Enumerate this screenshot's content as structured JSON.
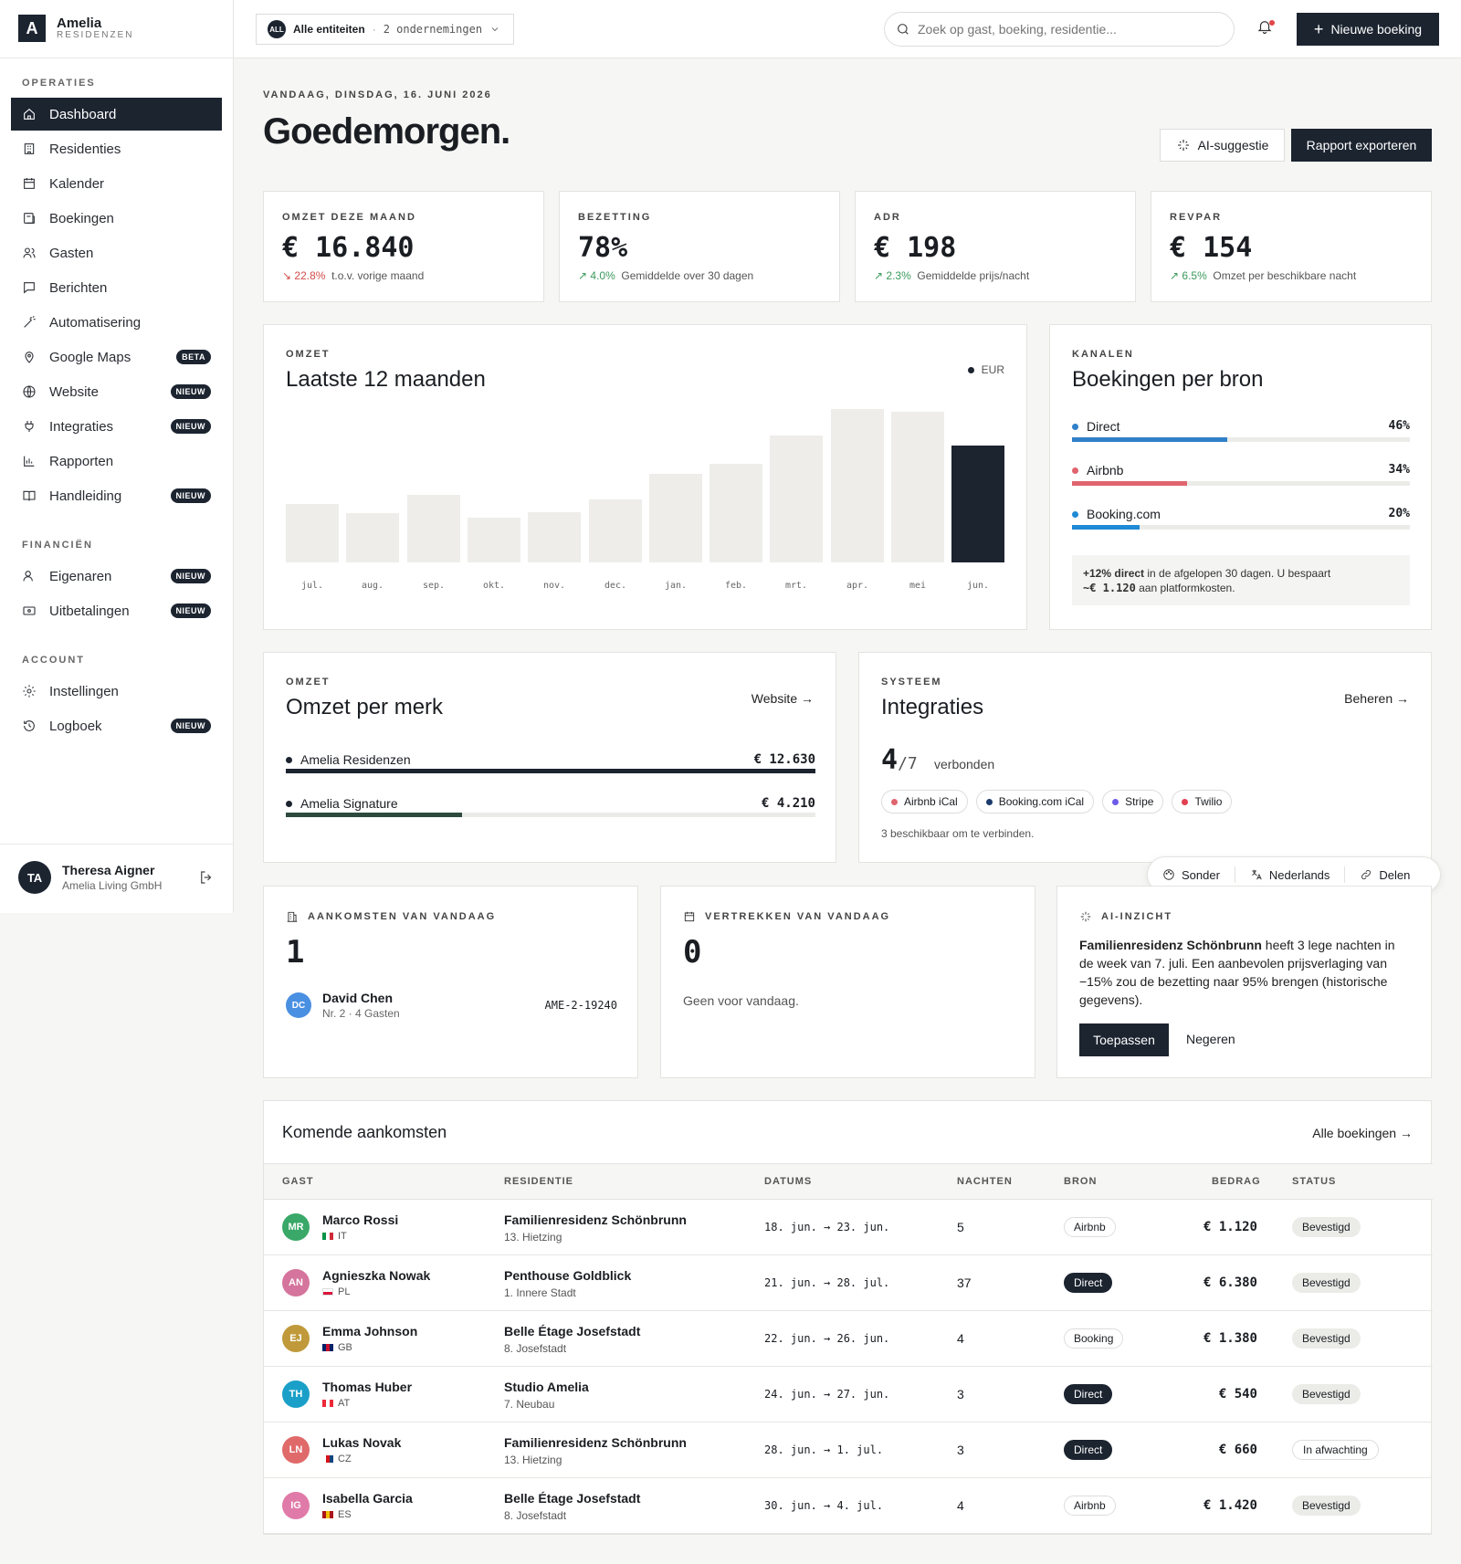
{
  "app": {
    "logo_letter": "A",
    "name": "Amelia",
    "subtitle": "RESIDENZEN"
  },
  "sidebar": {
    "sections": [
      {
        "title": "OPERATIES",
        "items": [
          {
            "label": "Dashboard",
            "icon": "home-icon",
            "active": true
          },
          {
            "label": "Residenties",
            "icon": "building-icon"
          },
          {
            "label": "Kalender",
            "icon": "calendar-icon"
          },
          {
            "label": "Boekingen",
            "icon": "booking-icon"
          },
          {
            "label": "Gasten",
            "icon": "users-icon"
          },
          {
            "label": "Berichten",
            "icon": "message-icon"
          },
          {
            "label": "Automatisering",
            "icon": "wand-icon"
          },
          {
            "label": "Google Maps",
            "icon": "map-pin-icon",
            "badge": "BETA"
          },
          {
            "label": "Website",
            "icon": "globe-icon",
            "badge": "NIEUW"
          },
          {
            "label": "Integraties",
            "icon": "plug-icon",
            "badge": "NIEUW"
          },
          {
            "label": "Rapporten",
            "icon": "bar-chart-icon"
          },
          {
            "label": "Handleiding",
            "icon": "book-icon",
            "badge": "NIEUW"
          }
        ]
      },
      {
        "title": "FINANCIËN",
        "items": [
          {
            "label": "Eigenaren",
            "icon": "owner-icon",
            "badge": "NIEUW"
          },
          {
            "label": "Uitbetalingen",
            "icon": "wallet-icon",
            "badge": "NIEUW"
          }
        ]
      },
      {
        "title": "ACCOUNT",
        "items": [
          {
            "label": "Instellingen",
            "icon": "gear-icon"
          },
          {
            "label": "Logboek",
            "icon": "history-icon",
            "badge": "NIEUW"
          }
        ]
      }
    ],
    "user": {
      "initials": "TA",
      "name": "Theresa Aigner",
      "org": "Amelia Living GmbH"
    }
  },
  "topbar": {
    "entity_badge": "ALL",
    "entity_label": "Alle entiteiten",
    "entity_count": "2 ondernemingen",
    "search_placeholder": "Zoek op gast, boeking, residentie...",
    "new_booking": "Nieuwe boeking"
  },
  "header": {
    "date": "VANDAAG, DINSDAG, 16. JUNI 2026",
    "greeting": "Goedemorgen.",
    "ai_button": "AI-suggestie",
    "export_button": "Rapport exporteren"
  },
  "kpis": [
    {
      "label": "OMZET DEZE MAAND",
      "value": "€ 16.840",
      "delta": "↘ 22.8%",
      "delta_dir": "down",
      "note": "t.o.v. vorige maand"
    },
    {
      "label": "BEZETTING",
      "value": "78%",
      "delta": "↗ 4.0%",
      "delta_dir": "up",
      "note": "Gemiddelde over 30 dagen"
    },
    {
      "label": "ADR",
      "value": "€ 198",
      "delta": "↗ 2.3%",
      "delta_dir": "up",
      "note": "Gemiddelde prijs/nacht"
    },
    {
      "label": "REVPAR",
      "value": "€ 154",
      "delta": "↗ 6.5%",
      "delta_dir": "up",
      "note": "Omzet per beschikbare nacht"
    }
  ],
  "chart_data": {
    "type": "bar",
    "label": "OMZET",
    "title": "Laatste 12 maanden",
    "legend": "EUR",
    "categories": [
      "jul.",
      "aug.",
      "sep.",
      "okt.",
      "nov.",
      "dec.",
      "jan.",
      "feb.",
      "mrt.",
      "apr.",
      "mei",
      "jun."
    ],
    "values": [
      38,
      32,
      44,
      29,
      33,
      41,
      58,
      64,
      83,
      100,
      98,
      76
    ],
    "highlight_index": 11,
    "ylim": [
      0,
      100
    ]
  },
  "channels": {
    "label": "KANALEN",
    "title": "Boekingen per bron",
    "items": [
      {
        "name": "Direct",
        "pct": "46%",
        "value": 46,
        "color": "#2f80c9"
      },
      {
        "name": "Airbnb",
        "pct": "34%",
        "value": 34,
        "color": "#e0646e"
      },
      {
        "name": "Booking.com",
        "pct": "20%",
        "value": 20,
        "color": "#1f8ad6"
      }
    ],
    "note_strong": "+12% direct",
    "note_rest": " in de afgelopen 30 dagen. U bespaart",
    "note_line2_code": "~€ 1.120",
    "note_line2_rest": " aan platformkosten."
  },
  "brands": {
    "label": "OMZET",
    "title": "Omzet per merk",
    "link": "Website →",
    "items": [
      {
        "name": "Amelia Residenzen",
        "value": "€ 12.630",
        "fraction": 1.0,
        "color": "#1c2430"
      },
      {
        "name": "Amelia Signature",
        "value": "€ 4.210",
        "fraction": 0.333,
        "color": "#2d4a3e"
      }
    ]
  },
  "integrations": {
    "label": "SYSTEEM",
    "title": "Integraties",
    "link": "Beheren →",
    "connected": "4",
    "total": "/7",
    "word": "verbonden",
    "chips": [
      {
        "name": "Airbnb iCal",
        "color": "#e0646e"
      },
      {
        "name": "Booking.com iCal",
        "color": "#1c3a6b"
      },
      {
        "name": "Stripe",
        "color": "#6c5ce7"
      },
      {
        "name": "Twilio",
        "color": "#e04050"
      }
    ],
    "sub": "3 beschikbaar om te verbinden."
  },
  "floatbar": {
    "items": [
      {
        "label": "Sonder",
        "icon": "palette-icon"
      },
      {
        "label": "Nederlands",
        "icon": "translate-icon"
      },
      {
        "label": "Delen",
        "icon": "link-icon"
      }
    ]
  },
  "arrivals_today": {
    "label": "AANKOMSTEN VAN VANDAAG",
    "count": "1",
    "guest": {
      "initials": "DC",
      "name": "David Chen",
      "sub": "Nr. 2 · 4 Gasten",
      "code": "AME-2-19240",
      "color": "#4a90e2"
    }
  },
  "departures_today": {
    "label": "VERTREKKEN VAN VANDAAG",
    "count": "0",
    "empty": "Geen voor vandaag."
  },
  "ai_insight": {
    "label": "AI-INZICHT",
    "strong": "Familienresidenz Schönbrunn",
    "text": " heeft 3 lege nachten in de week van 7. juli. Een aanbevolen prijsverlaging van −15% zou de bezetting naar 95% brengen (historische gegevens).",
    "apply": "Toepassen",
    "ignore": "Negeren"
  },
  "upcoming": {
    "title": "Komende aankomsten",
    "link": "Alle boekingen →",
    "columns": [
      "GAST",
      "RESIDENTIE",
      "DATUMS",
      "NACHTEN",
      "BRON",
      "BEDRAG",
      "STATUS"
    ],
    "rows": [
      {
        "initials": "MR",
        "color": "#3aa868",
        "name": "Marco Rossi",
        "country": "IT",
        "flag": [
          "#009246",
          "#ffffff",
          "#ce2b37"
        ],
        "residence": "Familienresidenz Schönbrunn",
        "district": "13. Hietzing",
        "dates": "18. jun. → 23. jun.",
        "nights": "5",
        "source": "Airbnb",
        "source_dark": false,
        "amount": "€ 1.120",
        "status": "Bevestigd",
        "pending": false
      },
      {
        "initials": "AN",
        "color": "#d5749c",
        "name": "Agnieszka Nowak",
        "country": "PL",
        "flag": [
          "#ffffff",
          "#dc143c"
        ],
        "residence": "Penthouse Goldblick",
        "district": "1. Innere Stadt",
        "dates": "21. jun. → 28. jul.",
        "nights": "37",
        "source": "Direct",
        "source_dark": true,
        "amount": "€ 6.380",
        "status": "Bevestigd",
        "pending": false
      },
      {
        "initials": "EJ",
        "color": "#c09a3a",
        "name": "Emma Johnson",
        "country": "GB",
        "flag": [
          "#012169",
          "#c8102e",
          "#012169"
        ],
        "residence": "Belle Étage Josefstadt",
        "district": "8. Josefstadt",
        "dates": "22. jun. → 26. jun.",
        "nights": "4",
        "source": "Booking",
        "source_dark": false,
        "amount": "€ 1.380",
        "status": "Bevestigd",
        "pending": false
      },
      {
        "initials": "TH",
        "color": "#1aa0c8",
        "name": "Thomas Huber",
        "country": "AT",
        "flag": [
          "#ed2939",
          "#ffffff",
          "#ed2939"
        ],
        "residence": "Studio Amelia",
        "district": "7. Neubau",
        "dates": "24. jun. → 27. jun.",
        "nights": "3",
        "source": "Direct",
        "source_dark": true,
        "amount": "€ 540",
        "status": "Bevestigd",
        "pending": false
      },
      {
        "initials": "LN",
        "color": "#e06a6a",
        "name": "Lukas Novak",
        "country": "CZ",
        "flag": [
          "#ffffff",
          "#d7141a",
          "#11457e"
        ],
        "residence": "Familienresidenz Schönbrunn",
        "district": "13. Hietzing",
        "dates": "28. jun. → 1. jul.",
        "nights": "3",
        "source": "Direct",
        "source_dark": true,
        "amount": "€ 660",
        "status": "In afwachting",
        "pending": true
      },
      {
        "initials": "IG",
        "color": "#e07aa8",
        "name": "Isabella Garcia",
        "country": "ES",
        "flag": [
          "#aa151b",
          "#f1bf00",
          "#aa151b"
        ],
        "residence": "Belle Étage Josefstadt",
        "district": "8. Josefstadt",
        "dates": "30. jun. → 4. jul.",
        "nights": "4",
        "source": "Airbnb",
        "source_dark": false,
        "amount": "€ 1.420",
        "status": "Bevestigd",
        "pending": false
      }
    ]
  }
}
